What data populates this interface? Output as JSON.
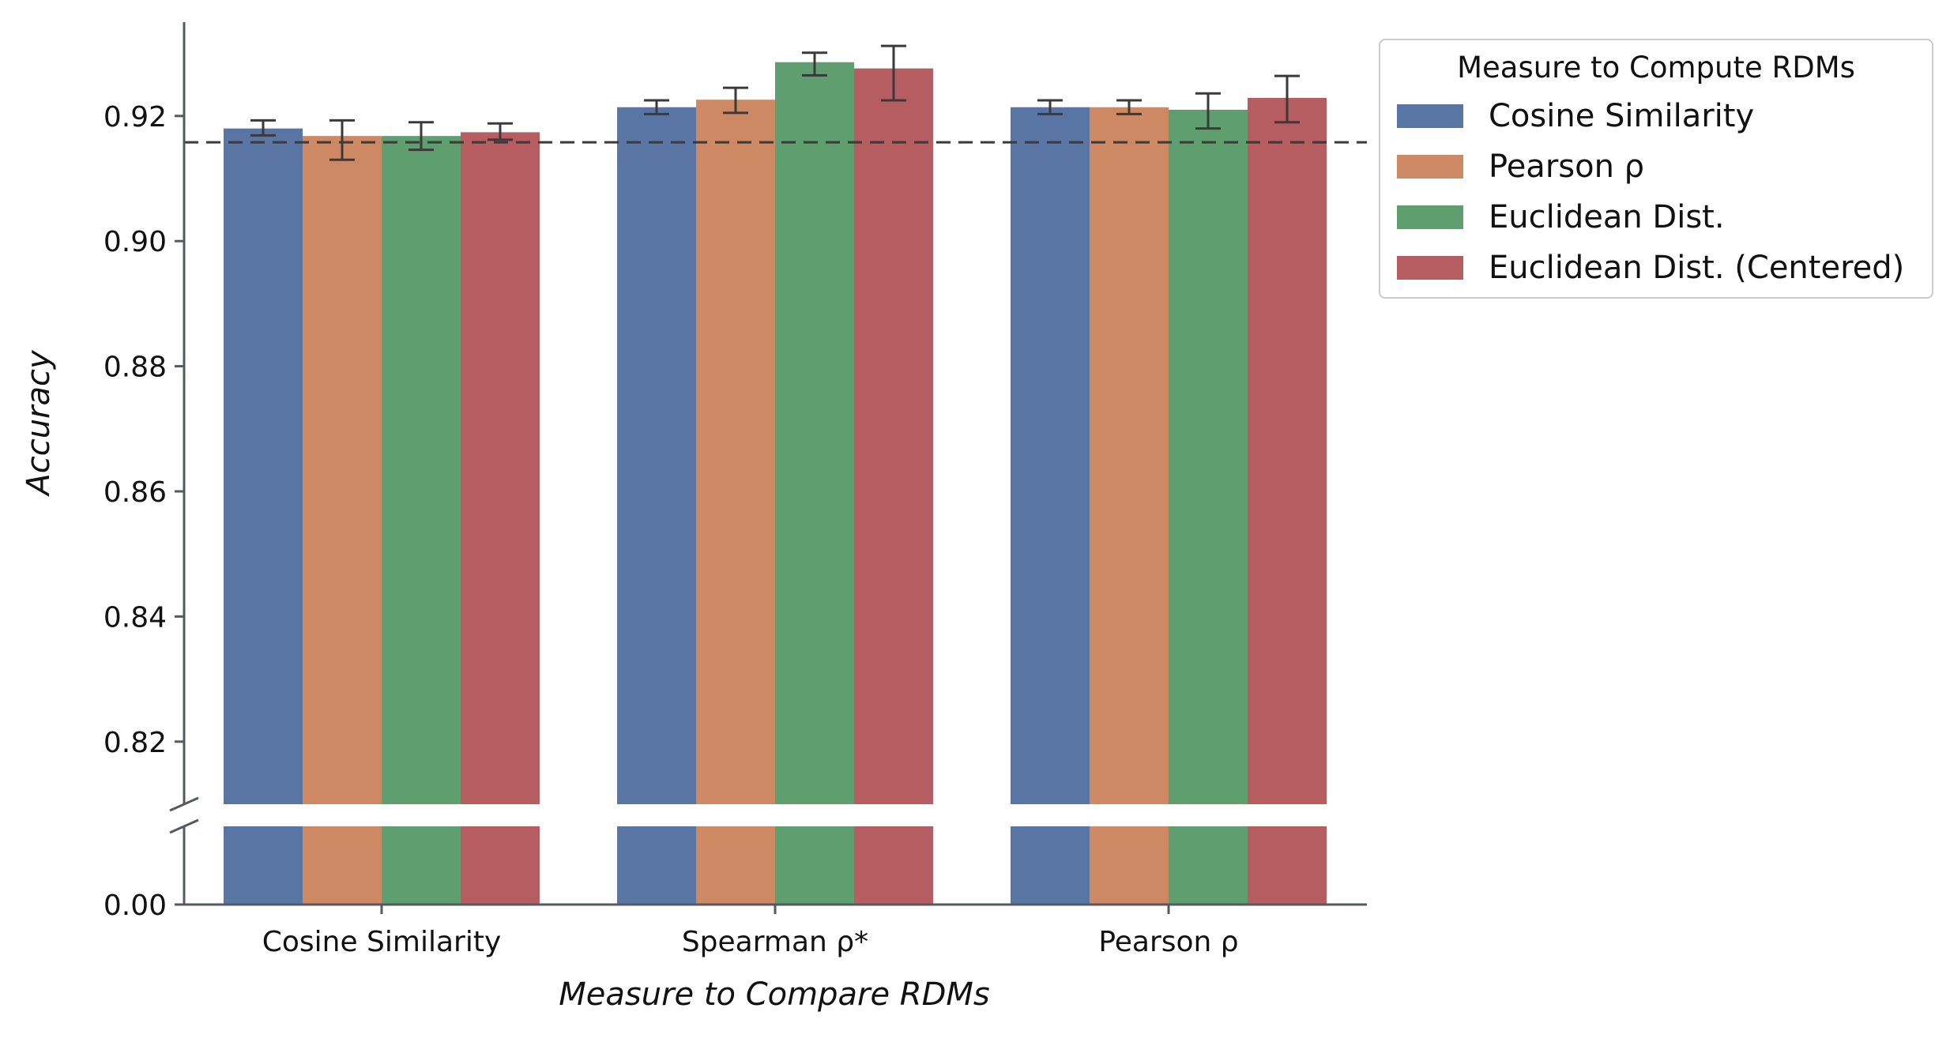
{
  "chart_data": {
    "type": "bar",
    "xlabel": "Measure to Compare RDMs",
    "ylabel": "Accuracy",
    "categories": [
      "Cosine Similarity",
      "Spearman ρ*",
      "Pearson ρ"
    ],
    "series": [
      {
        "name": "Cosine Similarity",
        "color": "#5875a4",
        "values": [
          0.918,
          0.9214,
          0.9214
        ],
        "err_low": [
          0.9169,
          0.9203,
          0.9203
        ],
        "err_high": [
          0.9193,
          0.9225,
          0.9225
        ]
      },
      {
        "name": "Pearson ρ",
        "color": "#cc8963",
        "values": [
          0.9168,
          0.9226,
          0.9214
        ],
        "err_low": [
          0.913,
          0.9205,
          0.9203
        ],
        "err_high": [
          0.9193,
          0.9245,
          0.9225
        ]
      },
      {
        "name": "Euclidean Dist.",
        "color": "#5f9e6e",
        "values": [
          0.9168,
          0.9286,
          0.921
        ],
        "err_low": [
          0.9146,
          0.9265,
          0.918
        ],
        "err_high": [
          0.919,
          0.9301,
          0.9236
        ]
      },
      {
        "name": "Euclidean Dist. (Centered)",
        "color": "#b55d60",
        "values": [
          0.9174,
          0.9276,
          0.9229
        ],
        "err_low": [
          0.9162,
          0.9225,
          0.919
        ],
        "err_high": [
          0.9188,
          0.9312,
          0.9264
        ]
      }
    ],
    "reference_line": 0.9158,
    "y_upper_range": [
      0.81,
      0.935
    ],
    "y_ticks_upper": [
      "0.82",
      "0.84",
      "0.86",
      "0.88",
      "0.90",
      "0.92"
    ],
    "y_ticks_lower": [
      "0.00"
    ],
    "broken_axis": true,
    "legend": {
      "title": "Measure to Compute RDMs",
      "placement": "top-right outside"
    },
    "grid": false
  }
}
